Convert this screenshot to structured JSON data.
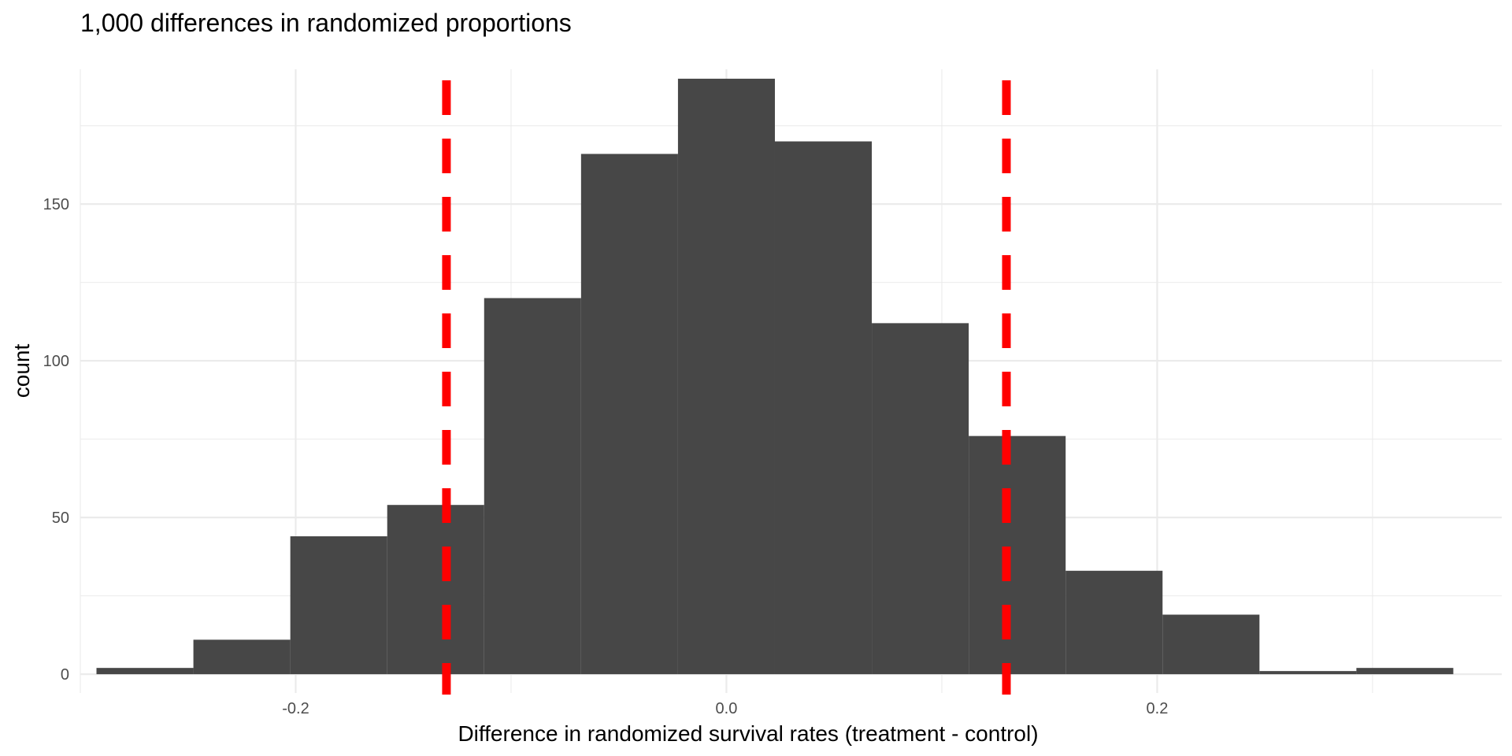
{
  "chart_data": {
    "type": "bar",
    "subtype": "histogram",
    "title": "1,000 differences in randomized proportions",
    "xlabel": "Difference in randomized survival rates (treatment - control)",
    "ylabel": "count",
    "xlim": [
      -0.3,
      0.36
    ],
    "ylim": [
      -6,
      193
    ],
    "x_ticks": [
      -0.2,
      0.0,
      0.2
    ],
    "x_tick_labels": [
      "-0.2",
      "0.0",
      "0.2"
    ],
    "x_minor_ticks": [
      -0.3,
      -0.1,
      0.1,
      0.3
    ],
    "y_ticks": [
      0,
      50,
      100,
      150
    ],
    "y_tick_labels": [
      "0",
      "50",
      "100",
      "150"
    ],
    "y_minor_ticks": [
      25,
      75,
      125,
      175
    ],
    "grid": true,
    "bin_width": 0.045,
    "bins": [
      {
        "x0": -0.2925,
        "x1": -0.2475,
        "count": 2
      },
      {
        "x0": -0.2475,
        "x1": -0.2025,
        "count": 11
      },
      {
        "x0": -0.2025,
        "x1": -0.1575,
        "count": 44
      },
      {
        "x0": -0.1575,
        "x1": -0.1125,
        "count": 54
      },
      {
        "x0": -0.1125,
        "x1": -0.0675,
        "count": 120
      },
      {
        "x0": -0.0675,
        "x1": -0.0225,
        "count": 166
      },
      {
        "x0": -0.0225,
        "x1": 0.0225,
        "count": 190
      },
      {
        "x0": 0.0225,
        "x1": 0.0675,
        "count": 170
      },
      {
        "x0": 0.0675,
        "x1": 0.1125,
        "count": 112
      },
      {
        "x0": 0.1125,
        "x1": 0.1575,
        "count": 76
      },
      {
        "x0": 0.1575,
        "x1": 0.2025,
        "count": 33
      },
      {
        "x0": 0.2025,
        "x1": 0.2475,
        "count": 19
      },
      {
        "x0": 0.2475,
        "x1": 0.2925,
        "count": 1
      },
      {
        "x0": 0.2925,
        "x1": 0.3375,
        "count": 2
      }
    ],
    "bar_color": "#474747",
    "reference_lines": [
      {
        "x": -0.13,
        "style": "dashed",
        "color": "#ff0000"
      },
      {
        "x": 0.13,
        "style": "dashed",
        "color": "#ff0000"
      }
    ]
  }
}
